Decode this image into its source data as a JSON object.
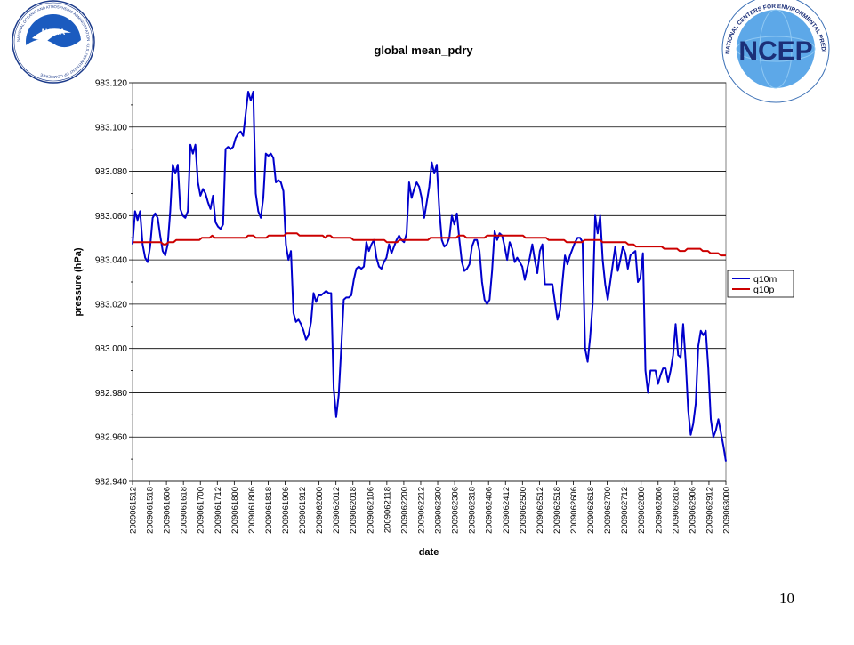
{
  "slide": {
    "page_number": "10",
    "logo_left": {
      "text": "NOAA",
      "ring_text": "NATIONAL OCEANIC AND ATMOSPHERIC ADMINISTRATION · U.S. DEPARTMENT OF COMMERCE"
    },
    "logo_right": {
      "text": "NCEP",
      "ring_text": "NATIONAL CENTERS FOR ENVIRONMENTAL PREDICTION"
    }
  },
  "colors": {
    "q10m": "#0000cc",
    "q10p": "#cc0000",
    "plot_bg": "#ffffff",
    "grid": "#000000"
  },
  "chart_data": {
    "type": "line",
    "title": "global mean_pdry",
    "xlabel": "date",
    "ylabel": "pressure (hPa)",
    "ylim": [
      982.94,
      983.12
    ],
    "yticks": [
      "982.940",
      "982.960",
      "982.980",
      "983.000",
      "983.020",
      "983.040",
      "983.060",
      "983.080",
      "983.100",
      "983.120"
    ],
    "grid": true,
    "legend": "right",
    "x_tick_labels": [
      "2009061512",
      "2009061518",
      "2009061606",
      "2009061618",
      "2009061700",
      "2009061712",
      "2009061800",
      "2009061806",
      "2009061818",
      "2009061906",
      "2009061912",
      "2009062000",
      "2009062012",
      "2009062018",
      "2009062106",
      "2009062118",
      "2009062200",
      "2009062212",
      "2009062300",
      "2009062306",
      "2009062318",
      "2009062406",
      "2009062412",
      "2009062500",
      "2009062512",
      "2009062518",
      "2009062606",
      "2009062618",
      "2009062700",
      "2009062712",
      "2009062800",
      "2009062806",
      "2009062818",
      "2009062906",
      "2009062912",
      "2009063000"
    ],
    "series": [
      {
        "name": "q10m",
        "values": [
          983.047,
          983.062,
          983.058,
          983.062,
          983.047,
          983.041,
          983.039,
          983.046,
          983.059,
          983.061,
          983.059,
          983.051,
          983.044,
          983.042,
          983.047,
          983.062,
          983.083,
          983.079,
          983.083,
          983.063,
          983.06,
          983.059,
          983.062,
          983.092,
          983.088,
          983.092,
          983.075,
          983.069,
          983.072,
          983.07,
          983.066,
          983.063,
          983.069,
          983.057,
          983.055,
          983.054,
          983.056,
          983.09,
          983.091,
          983.09,
          983.091,
          983.095,
          983.097,
          983.098,
          983.096,
          983.106,
          983.116,
          983.112,
          983.116,
          983.07,
          983.062,
          983.059,
          983.068,
          983.088,
          983.087,
          983.088,
          983.086,
          983.075,
          983.076,
          983.075,
          983.071,
          983.047,
          983.04,
          983.044,
          983.016,
          983.012,
          983.013,
          983.011,
          983.008,
          983.004,
          983.006,
          983.012,
          983.025,
          983.021,
          983.024,
          983.024,
          983.025,
          983.026,
          983.025,
          983.025,
          982.982,
          982.969,
          982.979,
          983.0,
          983.022,
          983.023,
          983.023,
          983.024,
          983.031,
          983.036,
          983.037,
          983.036,
          983.037,
          983.048,
          983.044,
          983.047,
          983.049,
          983.041,
          983.037,
          983.036,
          983.039,
          983.041,
          983.047,
          983.043,
          983.046,
          983.049,
          983.051,
          983.049,
          983.048,
          983.052,
          983.075,
          983.068,
          983.072,
          983.075,
          983.073,
          983.068,
          983.059,
          983.066,
          983.073,
          983.084,
          983.079,
          983.083,
          983.063,
          983.049,
          983.046,
          983.047,
          983.05,
          983.06,
          983.056,
          983.061,
          983.049,
          983.039,
          983.035,
          983.036,
          983.038,
          983.046,
          983.049,
          983.049,
          983.044,
          983.03,
          983.022,
          983.02,
          983.022,
          983.035,
          983.053,
          983.049,
          983.052,
          983.051,
          983.046,
          983.04,
          983.048,
          983.045,
          983.039,
          983.041,
          983.039,
          983.037,
          983.031,
          983.036,
          983.041,
          983.047,
          983.04,
          983.034,
          983.044,
          983.047,
          983.029,
          983.029,
          983.029,
          983.029,
          983.021,
          983.013,
          983.017,
          983.03,
          983.042,
          983.038,
          983.042,
          983.045,
          983.048,
          983.05,
          983.05,
          983.048,
          983.0,
          982.994,
          983.005,
          983.02,
          983.06,
          983.052,
          983.06,
          983.04,
          983.029,
          983.022,
          983.03,
          983.038,
          983.046,
          983.035,
          983.04,
          983.046,
          983.043,
          983.036,
          983.042,
          983.043,
          983.044,
          983.03,
          983.032,
          983.043,
          982.99,
          982.98,
          982.99,
          982.99,
          982.99,
          982.984,
          982.988,
          982.991,
          982.991,
          982.985,
          982.99,
          982.997,
          983.011,
          982.997,
          982.996,
          983.011,
          982.994,
          982.972,
          982.961,
          982.966,
          982.975,
          983.001,
          983.008,
          983.006,
          983.008,
          982.991,
          982.968,
          982.96,
          982.963,
          982.968,
          982.962,
          982.956,
          982.949
        ]
      },
      {
        "name": "q10p",
        "values": [
          983.048,
          983.048,
          983.048,
          983.048,
          983.048,
          983.048,
          983.048,
          983.048,
          983.048,
          983.048,
          983.048,
          983.048,
          983.047,
          983.047,
          983.048,
          983.048,
          983.048,
          983.049,
          983.049,
          983.049,
          983.049,
          983.049,
          983.049,
          983.049,
          983.049,
          983.049,
          983.049,
          983.05,
          983.05,
          983.05,
          983.05,
          983.051,
          983.05,
          983.05,
          983.05,
          983.05,
          983.05,
          983.05,
          983.05,
          983.05,
          983.05,
          983.05,
          983.05,
          983.05,
          983.05,
          983.051,
          983.051,
          983.051,
          983.05,
          983.05,
          983.05,
          983.05,
          983.05,
          983.051,
          983.051,
          983.051,
          983.051,
          983.051,
          983.051,
          983.051,
          983.052,
          983.052,
          983.052,
          983.052,
          983.052,
          983.051,
          983.051,
          983.051,
          983.051,
          983.051,
          983.051,
          983.051,
          983.051,
          983.051,
          983.051,
          983.05,
          983.051,
          983.051,
          983.05,
          983.05,
          983.05,
          983.05,
          983.05,
          983.05,
          983.05,
          983.05,
          983.049,
          983.049,
          983.049,
          983.049,
          983.049,
          983.049,
          983.049,
          983.049,
          983.049,
          983.049,
          983.049,
          983.049,
          983.049,
          983.048,
          983.048,
          983.048,
          983.048,
          983.048,
          983.049,
          983.049,
          983.049,
          983.049,
          983.049,
          983.049,
          983.049,
          983.049,
          983.049,
          983.049,
          983.049,
          983.049,
          983.05,
          983.05,
          983.05,
          983.05,
          983.05,
          983.05,
          983.05,
          983.05,
          983.05,
          983.05,
          983.05,
          983.051,
          983.051,
          983.051,
          983.05,
          983.05,
          983.05,
          983.05,
          983.05,
          983.05,
          983.05,
          983.05,
          983.051,
          983.051,
          983.051,
          983.051,
          983.051,
          983.051,
          983.051,
          983.051,
          983.051,
          983.051,
          983.051,
          983.051,
          983.051,
          983.051,
          983.051,
          983.05,
          983.05,
          983.05,
          983.05,
          983.05,
          983.05,
          983.05,
          983.05,
          983.05,
          983.049,
          983.049,
          983.049,
          983.049,
          983.049,
          983.049,
          983.049,
          983.048,
          983.048,
          983.048,
          983.048,
          983.048,
          983.048,
          983.048,
          983.049,
          983.049,
          983.049,
          983.049,
          983.049,
          983.049,
          983.049,
          983.048,
          983.048,
          983.048,
          983.048,
          983.048,
          983.048,
          983.048,
          983.048,
          983.048,
          983.048,
          983.047,
          983.047,
          983.047,
          983.046,
          983.046,
          983.046,
          983.046,
          983.046,
          983.046,
          983.046,
          983.046,
          983.046,
          983.046,
          983.046,
          983.045,
          983.045,
          983.045,
          983.045,
          983.045,
          983.045,
          983.044,
          983.044,
          983.044,
          983.045,
          983.045,
          983.045,
          983.045,
          983.045,
          983.045,
          983.044,
          983.044,
          983.044,
          983.043,
          983.043,
          983.043,
          983.043,
          983.042,
          983.042,
          983.042
        ]
      }
    ]
  }
}
